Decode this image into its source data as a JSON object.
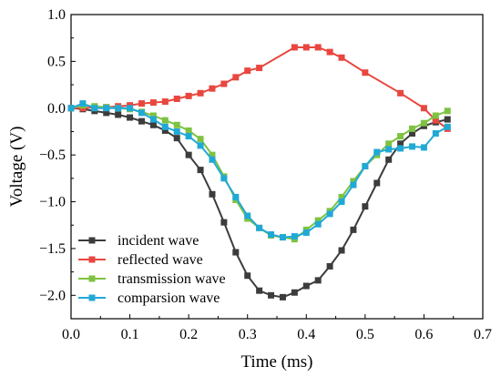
{
  "chart_data": {
    "type": "line",
    "title": "",
    "xlabel": "Time (ms)",
    "ylabel": "Voltage (V)",
    "xlim": [
      0.0,
      0.7
    ],
    "ylim": [
      -2.25,
      1.0
    ],
    "x_ticks": [
      "0.0",
      "0.1",
      "0.2",
      "0.3",
      "0.4",
      "0.5",
      "0.6",
      "0.7"
    ],
    "x_tick_values": [
      0.0,
      0.1,
      0.2,
      0.3,
      0.4,
      0.5,
      0.6,
      0.7
    ],
    "y_ticks": [
      "1.0",
      "0.5",
      "0.0",
      "−0.5",
      "−1.0",
      "−1.5",
      "−2.0"
    ],
    "y_tick_values": [
      1.0,
      0.5,
      0.0,
      -0.5,
      -1.0,
      -1.5,
      -2.0
    ],
    "grid": false,
    "legend_position": "bottom-left",
    "series": [
      {
        "name": "incident wave",
        "color": "#3c3c3c",
        "x": [
          0.0,
          0.02,
          0.04,
          0.06,
          0.08,
          0.1,
          0.12,
          0.14,
          0.16,
          0.18,
          0.2,
          0.22,
          0.24,
          0.26,
          0.28,
          0.3,
          0.32,
          0.34,
          0.36,
          0.38,
          0.4,
          0.42,
          0.44,
          0.46,
          0.48,
          0.5,
          0.52,
          0.54,
          0.56,
          0.58,
          0.6,
          0.62,
          0.64
        ],
        "y": [
          0.0,
          -0.01,
          -0.03,
          -0.05,
          -0.07,
          -0.1,
          -0.14,
          -0.18,
          -0.24,
          -0.32,
          -0.5,
          -0.66,
          -0.92,
          -1.22,
          -1.54,
          -1.79,
          -1.95,
          -2.0,
          -2.02,
          -1.97,
          -1.9,
          -1.84,
          -1.69,
          -1.52,
          -1.3,
          -1.05,
          -0.8,
          -0.55,
          -0.38,
          -0.27,
          -0.19,
          -0.15,
          -0.12
        ]
      },
      {
        "name": "reflected wave",
        "color": "#e8473f",
        "x": [
          0.0,
          0.02,
          0.04,
          0.06,
          0.08,
          0.1,
          0.12,
          0.14,
          0.16,
          0.18,
          0.2,
          0.22,
          0.24,
          0.26,
          0.28,
          0.3,
          0.32,
          0.38,
          0.4,
          0.42,
          0.44,
          0.46,
          0.5,
          0.56,
          0.6,
          0.62,
          0.64
        ],
        "y": [
          0.0,
          0.0,
          0.01,
          0.01,
          0.02,
          0.03,
          0.05,
          0.06,
          0.07,
          0.1,
          0.13,
          0.16,
          0.21,
          0.26,
          0.33,
          0.4,
          0.43,
          0.65,
          0.65,
          0.65,
          0.6,
          0.54,
          0.38,
          0.16,
          0.0,
          -0.13,
          -0.22
        ]
      },
      {
        "name": "transmission wave",
        "color": "#7ec242",
        "x": [
          0.0,
          0.02,
          0.04,
          0.06,
          0.08,
          0.1,
          0.12,
          0.14,
          0.16,
          0.18,
          0.2,
          0.22,
          0.24,
          0.26,
          0.28,
          0.3,
          0.32,
          0.34,
          0.36,
          0.38,
          0.4,
          0.42,
          0.44,
          0.46,
          0.48,
          0.5,
          0.52,
          0.54,
          0.56,
          0.58,
          0.6,
          0.62,
          0.64
        ],
        "y": [
          0.0,
          0.03,
          0.02,
          0.01,
          0.0,
          -0.01,
          -0.04,
          -0.08,
          -0.13,
          -0.18,
          -0.24,
          -0.33,
          -0.5,
          -0.73,
          -0.98,
          -1.18,
          -1.28,
          -1.36,
          -1.38,
          -1.4,
          -1.3,
          -1.2,
          -1.1,
          -0.95,
          -0.78,
          -0.62,
          -0.5,
          -0.38,
          -0.3,
          -0.22,
          -0.16,
          -0.08,
          -0.03
        ]
      },
      {
        "name": "comparsion wave",
        "color": "#21a9d6",
        "x": [
          0.0,
          0.02,
          0.04,
          0.06,
          0.08,
          0.1,
          0.12,
          0.14,
          0.16,
          0.18,
          0.2,
          0.22,
          0.24,
          0.26,
          0.28,
          0.3,
          0.32,
          0.34,
          0.36,
          0.38,
          0.4,
          0.42,
          0.44,
          0.46,
          0.48,
          0.5,
          0.52,
          0.54,
          0.56,
          0.58,
          0.6,
          0.62,
          0.64
        ],
        "y": [
          0.0,
          0.05,
          0.0,
          0.0,
          0.0,
          0.0,
          -0.05,
          -0.12,
          -0.2,
          -0.25,
          -0.3,
          -0.4,
          -0.55,
          -0.75,
          -0.95,
          -1.15,
          -1.28,
          -1.35,
          -1.38,
          -1.37,
          -1.33,
          -1.24,
          -1.13,
          -1.0,
          -0.82,
          -0.62,
          -0.47,
          -0.44,
          -0.43,
          -0.41,
          -0.42,
          -0.27,
          -0.2
        ]
      }
    ]
  }
}
